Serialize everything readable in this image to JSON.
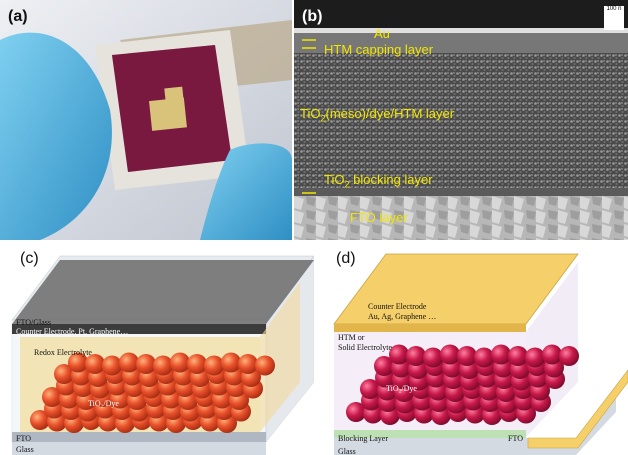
{
  "panel_a": {
    "label": "(a)"
  },
  "panel_b": {
    "label": "(b)",
    "scale": "100 n",
    "layers": {
      "au": "Au",
      "htm_cap": "HTM capping layer",
      "meso_pre": "TiO",
      "meso_sub": "2",
      "meso_post": "(meso)/dye/HTM layer",
      "block_pre": "TiO",
      "block_sub": "2",
      "block_post": " blocking layer",
      "fto": "FTO layer"
    }
  },
  "panel_c": {
    "label": "(c)",
    "fto_glass_top": "FTO/Glass",
    "counter": "Counter Electrode, Pt, Graphene…",
    "redox": "Redox Electrolyte",
    "tio2": "TiO₂/Dye",
    "fto_bottom": "FTO",
    "glass_bottom": "Glass"
  },
  "panel_d": {
    "label": "(d)",
    "counter_1": "Counter Electrode",
    "counter_2": "Au, Ag, Graphene …",
    "htm_1": "HTM or",
    "htm_2": "Solid Electrolyte",
    "tio2": "TiO₂/Dye",
    "blocking": "Blocking Layer",
    "fto": "FTO",
    "glass": "Glass"
  },
  "colors": {
    "sphere_c": "#e8502a",
    "sphere_d": "#c8184a",
    "gold": "#f5cf6a",
    "sem_text": "#f2e600"
  }
}
